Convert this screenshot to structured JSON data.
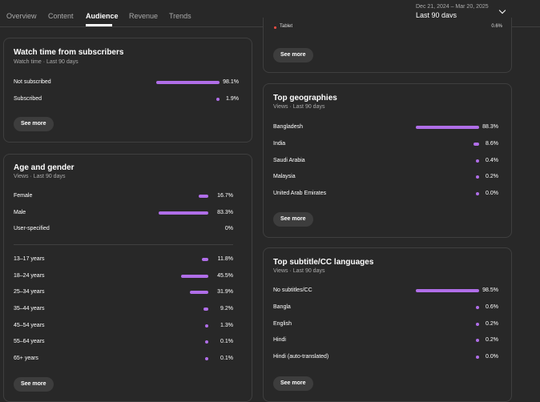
{
  "tabs": [
    {
      "label": "Overview"
    },
    {
      "label": "Content"
    },
    {
      "label": "Audience"
    },
    {
      "label": "Revenue"
    },
    {
      "label": "Trends"
    }
  ],
  "date_picker": {
    "range": "Dec 21, 2024 – Mar 20, 2025",
    "label": "Last 90 days"
  },
  "device_card": {
    "row_label": "Tablet",
    "row_value": "0.6%",
    "see_more": "See more"
  },
  "watch_time": {
    "title": "Watch time from subscribers",
    "subtitle": "Watch time · Last 90 days",
    "rows": [
      {
        "label": "Not subscribed",
        "value": "98.1%",
        "pct": 98.1
      },
      {
        "label": "Subscribed",
        "value": "1.9%",
        "pct": 1.9
      }
    ],
    "see_more": "See more"
  },
  "age_gender": {
    "title": "Age and gender",
    "subtitle": "Views · Last 90 days",
    "gender_rows": [
      {
        "label": "Female",
        "value": "16.7%",
        "pct": 16.7
      },
      {
        "label": "Male",
        "value": "83.3%",
        "pct": 83.3
      },
      {
        "label": "User-specified",
        "value": "0%",
        "pct": 0
      }
    ],
    "age_rows": [
      {
        "label": "13–17 years",
        "value": "11.8%",
        "pct": 11.8
      },
      {
        "label": "18–24 years",
        "value": "45.5%",
        "pct": 45.5
      },
      {
        "label": "25–34 years",
        "value": "31.9%",
        "pct": 31.9
      },
      {
        "label": "35–44 years",
        "value": "9.2%",
        "pct": 9.2
      },
      {
        "label": "45–54 years",
        "value": "1.3%",
        "pct": 1.3
      },
      {
        "label": "55–64 years",
        "value": "0.1%",
        "pct": 0.1
      },
      {
        "label": "65+ years",
        "value": "0.1%",
        "pct": 0.1
      }
    ],
    "see_more": "See more"
  },
  "geographies": {
    "title": "Top geographies",
    "subtitle": "Views · Last 90 days",
    "rows": [
      {
        "label": "Bangladesh",
        "value": "88.3%",
        "pct": 88.3
      },
      {
        "label": "India",
        "value": "8.6%",
        "pct": 8.6
      },
      {
        "label": "Saudi Arabia",
        "value": "0.4%",
        "pct": 0.4
      },
      {
        "label": "Malaysia",
        "value": "0.2%",
        "pct": 0.2
      },
      {
        "label": "United Arab Emirates",
        "value": "0.0%",
        "pct": 0.0
      }
    ],
    "see_more": "See more"
  },
  "subtitles": {
    "title": "Top subtitle/CC languages",
    "subtitle": "Views · Last 90 days",
    "rows": [
      {
        "label": "No subtitles/CC",
        "value": "98.5%",
        "pct": 98.5
      },
      {
        "label": "Bangla",
        "value": "0.6%",
        "pct": 0.6
      },
      {
        "label": "English",
        "value": "0.2%",
        "pct": 0.2
      },
      {
        "label": "Hindi",
        "value": "0.2%",
        "pct": 0.2
      },
      {
        "label": "Hindi (auto-translated)",
        "value": "0.0%",
        "pct": 0.0
      }
    ],
    "see_more": "See more"
  },
  "colors": {
    "bar": "#b06ee8",
    "background": "#282828",
    "border": "#3f3f3f"
  }
}
